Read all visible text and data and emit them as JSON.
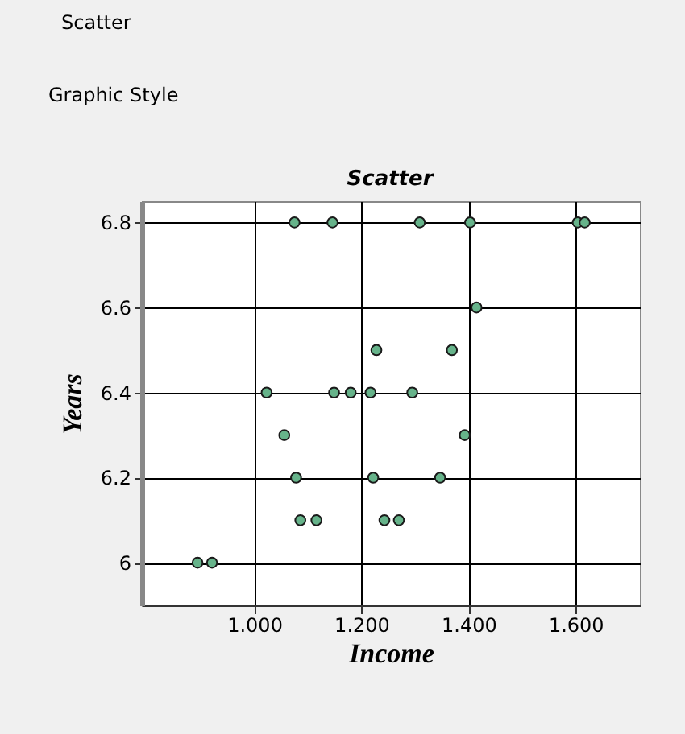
{
  "chart_data": {
    "type": "scatter",
    "title": "Scatter",
    "xlabel": "Income",
    "ylabel": "Years",
    "annotations": [
      "Scatter",
      "Graphic Style"
    ],
    "x": [
      1.075,
      1.146,
      1.309,
      1.403,
      1.604,
      1.617,
      1.415,
      1.228,
      1.369,
      1.023,
      1.149,
      1.18,
      1.217,
      1.295,
      1.056,
      1.393,
      1.078,
      1.222,
      1.347,
      1.086,
      1.116,
      1.243,
      1.27,
      0.894,
      0.921
    ],
    "series": [
      {
        "color": "#66b38a",
        "values": [
          6.8,
          6.8,
          6.8,
          6.8,
          6.8,
          6.8,
          6.6,
          6.5,
          6.5,
          6.4,
          6.4,
          6.4,
          6.4,
          6.4,
          6.3,
          6.3,
          6.2,
          6.2,
          6.2,
          6.1,
          6.1,
          6.1,
          6.1,
          6.0,
          6.0
        ]
      }
    ],
    "xlim": [
      0.79,
      1.72
    ],
    "ylim": [
      5.9,
      6.85
    ],
    "xticks": [
      {
        "value": 1.0,
        "label": "1.000"
      },
      {
        "value": 1.2,
        "label": "1.200"
      },
      {
        "value": 1.4,
        "label": "1.400"
      },
      {
        "value": 1.6,
        "label": "1.600"
      }
    ],
    "yticks": [
      {
        "value": 6.0,
        "label": "6"
      },
      6.2,
      6.4,
      6.6,
      6.8
    ],
    "grid": true,
    "marker": "circle",
    "legend": false
  }
}
